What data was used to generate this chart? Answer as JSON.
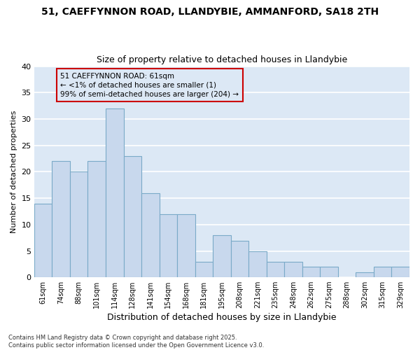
{
  "title1": "51, CAEFFYNNON ROAD, LLANDYBIE, AMMANFORD, SA18 2TH",
  "title2": "Size of property relative to detached houses in Llandybie",
  "xlabel": "Distribution of detached houses by size in Llandybie",
  "ylabel": "Number of detached properties",
  "categories": [
    "61sqm",
    "74sqm",
    "88sqm",
    "101sqm",
    "114sqm",
    "128sqm",
    "141sqm",
    "154sqm",
    "168sqm",
    "181sqm",
    "195sqm",
    "208sqm",
    "221sqm",
    "235sqm",
    "248sqm",
    "262sqm",
    "275sqm",
    "288sqm",
    "302sqm",
    "315sqm",
    "329sqm"
  ],
  "values": [
    14,
    22,
    20,
    22,
    32,
    23,
    16,
    12,
    12,
    3,
    8,
    7,
    5,
    3,
    3,
    2,
    2,
    0,
    1,
    2,
    2
  ],
  "bar_color": "#c8d8ed",
  "bar_edge_color": "#7aaac8",
  "highlight_box_color": "#cc0000",
  "annotation_line1": "51 CAEFFYNNON ROAD: 61sqm",
  "annotation_line2": "← <1% of detached houses are smaller (1)",
  "annotation_line3": "99% of semi-detached houses are larger (204) →",
  "plot_bg_color": "#dce8f5",
  "fig_bg_color": "#ffffff",
  "grid_color": "#ffffff",
  "footer_line1": "Contains HM Land Registry data © Crown copyright and database right 2025.",
  "footer_line2": "Contains public sector information licensed under the Open Government Licence v3.0.",
  "ylim": [
    0,
    40
  ],
  "yticks": [
    0,
    5,
    10,
    15,
    20,
    25,
    30,
    35,
    40
  ]
}
